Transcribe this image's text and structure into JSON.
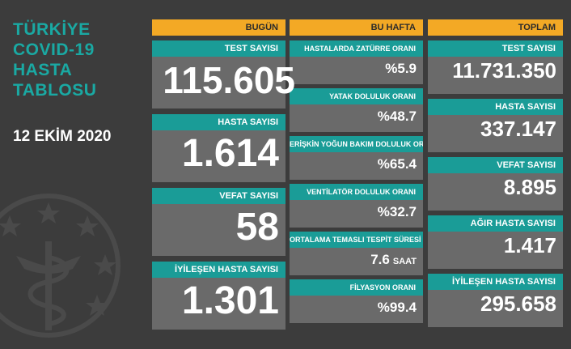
{
  "title_lines": [
    "TÜRKİYE",
    "COVID-19",
    "HASTA",
    "TABLOSU"
  ],
  "date": "12 EKİM 2020",
  "columns": {
    "today": "BUGÜN",
    "week": "BU HAFTA",
    "total": "TOPLAM"
  },
  "today": [
    {
      "label": "TEST SAYISI",
      "value": "115.605"
    },
    {
      "label": "HASTA SAYISI",
      "value": "1.614"
    },
    {
      "label": "VEFAT SAYISI",
      "value": "58"
    },
    {
      "label": "İYİLEŞEN HASTA SAYISI",
      "value": "1.301"
    }
  ],
  "week": [
    {
      "label": "HASTALARDA ZATÜRRE ORANI",
      "value": "%5.9"
    },
    {
      "label": "YATAK DOLULUK ORANI",
      "value": "%48.7"
    },
    {
      "label": "ERİŞKİN YOĞUN BAKIM DOLULUK ORANI",
      "value": "%65.4"
    },
    {
      "label": "VENTİLATÖR DOLULUK ORANI",
      "value": "%32.7"
    },
    {
      "label": "ORTALAMA TEMASLI TESPİT SÜRESİ",
      "value": "7.6",
      "unit": "SAAT"
    },
    {
      "label": "FİLYASYON ORANI",
      "value": "%99.4"
    }
  ],
  "total": [
    {
      "label": "TEST SAYISI",
      "value": "11.731.350"
    },
    {
      "label": "HASTA SAYISI",
      "value": "337.147"
    },
    {
      "label": "VEFAT SAYISI",
      "value": "8.895"
    },
    {
      "label": "AĞIR HASTA SAYISI",
      "value": "1.417"
    },
    {
      "label": "İYİLEŞEN HASTA SAYISI",
      "value": "295.658"
    }
  ],
  "colors": {
    "background": "#3c3c3c",
    "header": "#f3a925",
    "label": "#1a9c97",
    "card": "#6a6a6a",
    "title": "#1aa9a3"
  }
}
